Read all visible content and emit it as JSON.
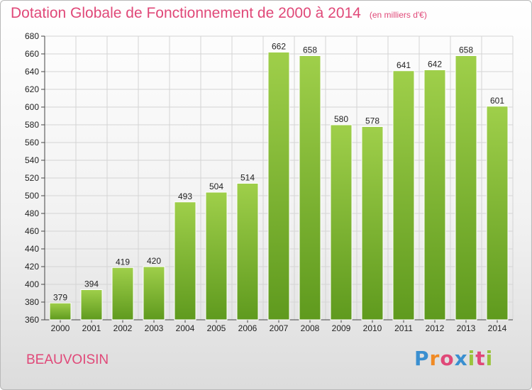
{
  "header": {
    "title": "Dotation Globale de Fonctionnement de 2000 à 2014",
    "unit": "(en milliers d'€)"
  },
  "footer": {
    "commune": "BEAUVOISIN",
    "logo_letters": [
      "P",
      "r",
      "o",
      "x",
      "i",
      "t",
      "i"
    ],
    "logo_colors": [
      "#3a8fd0",
      "#f08a24",
      "#e04878",
      "#3a8fd0",
      "#9ac43c",
      "#e04878",
      "#9ac43c"
    ]
  },
  "colors": {
    "bar_top": "#9fcf4a",
    "bar_bottom": "#5f9a1e",
    "grid": "#d4d4d4",
    "accent": "#e04878"
  },
  "chart_data": {
    "type": "bar",
    "categories": [
      "2000",
      "2001",
      "2002",
      "2003",
      "2004",
      "2005",
      "2006",
      "2007",
      "2008",
      "2009",
      "2010",
      "2011",
      "2012",
      "2013",
      "2014"
    ],
    "values": [
      379,
      394,
      419,
      420,
      493,
      504,
      514,
      662,
      658,
      580,
      578,
      641,
      642,
      658,
      601
    ],
    "title": "Dotation Globale de Fonctionnement de 2000 à 2014",
    "subtitle": "(en milliers d'€)",
    "ylim": [
      360,
      680
    ],
    "yticks": [
      360,
      380,
      400,
      420,
      440,
      460,
      480,
      500,
      520,
      540,
      560,
      580,
      600,
      620,
      640,
      660,
      680
    ],
    "grid": true,
    "legend": "none"
  }
}
